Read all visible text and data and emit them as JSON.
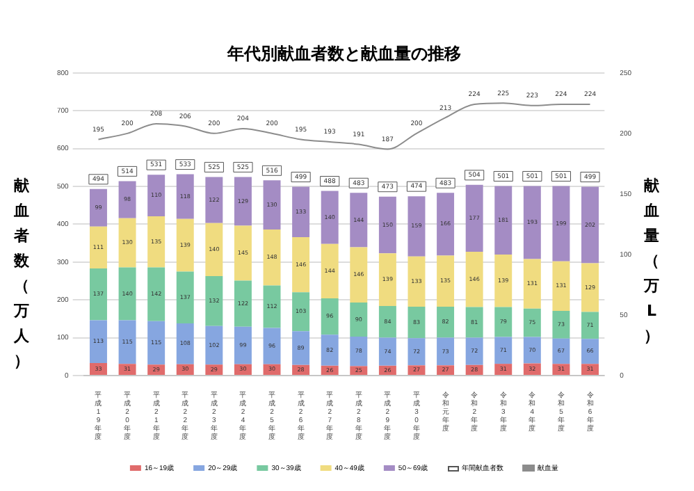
{
  "chart_data": {
    "type": "bar",
    "title": "年代別献血者数と献血量の推移",
    "ylabel": "献血者数（万人）",
    "y2label": "献血量（万L）",
    "categories": [
      "平成19年度",
      "平成20年度",
      "平成21年度",
      "平成22年度",
      "平成23年度",
      "平成24年度",
      "平成25年度",
      "平成26年度",
      "平成27年度",
      "平成28年度",
      "平成29年度",
      "平成30年度",
      "令和元年度",
      "令和2年度",
      "令和3年度",
      "令和4年度",
      "令和5年度",
      "令和6年度"
    ],
    "stacked": true,
    "ylim": [
      0,
      800
    ],
    "yticks": [
      0,
      100,
      200,
      300,
      400,
      500,
      600,
      700,
      800
    ],
    "y2lim": [
      0,
      250
    ],
    "y2ticks": [
      0,
      50,
      100,
      150,
      200,
      250
    ],
    "grid": "y",
    "legend": "bottom",
    "data_labels": true,
    "marker": "none",
    "series": [
      {
        "name": "16～19歳",
        "color": "#e06b6b",
        "values": [
          33,
          31,
          29,
          30,
          29,
          30,
          30,
          28,
          26,
          25,
          26,
          27,
          27,
          28,
          31,
          32,
          31,
          31
        ]
      },
      {
        "name": "20～29歳",
        "color": "#86a6e0",
        "values": [
          113,
          115,
          115,
          108,
          102,
          99,
          96,
          89,
          82,
          78,
          74,
          72,
          73,
          72,
          71,
          70,
          67,
          66
        ]
      },
      {
        "name": "30～39歳",
        "color": "#78c9a0",
        "values": [
          137,
          140,
          142,
          137,
          132,
          122,
          112,
          103,
          96,
          90,
          84,
          83,
          82,
          81,
          79,
          75,
          73,
          71
        ]
      },
      {
        "name": "40～49歳",
        "color": "#f0dc80",
        "values": [
          111,
          130,
          135,
          139,
          140,
          145,
          148,
          146,
          144,
          146,
          139,
          133,
          135,
          146,
          139,
          131,
          131,
          129
        ]
      },
      {
        "name": "50～69歳",
        "color": "#a48cc4",
        "values": [
          99,
          98,
          110,
          118,
          122,
          129,
          130,
          133,
          140,
          144,
          150,
          159,
          166,
          177,
          181,
          193,
          199,
          202
        ]
      },
      {
        "name": "献血量",
        "type": "line",
        "axis": "y2",
        "color": "#8c8c8c",
        "values": [
          195,
          200,
          208,
          206,
          200,
          204,
          200,
          195,
          193,
          191,
          187,
          200,
          213,
          224,
          225,
          223,
          224,
          224
        ]
      }
    ],
    "totals": [
      "494",
      "514",
      "531",
      "533",
      "525",
      "525",
      "516",
      "499",
      "488",
      "483",
      "473",
      "474",
      "483",
      "504",
      "501",
      "501",
      "501",
      "499"
    ],
    "annotations": [
      "年間献血者数"
    ]
  }
}
